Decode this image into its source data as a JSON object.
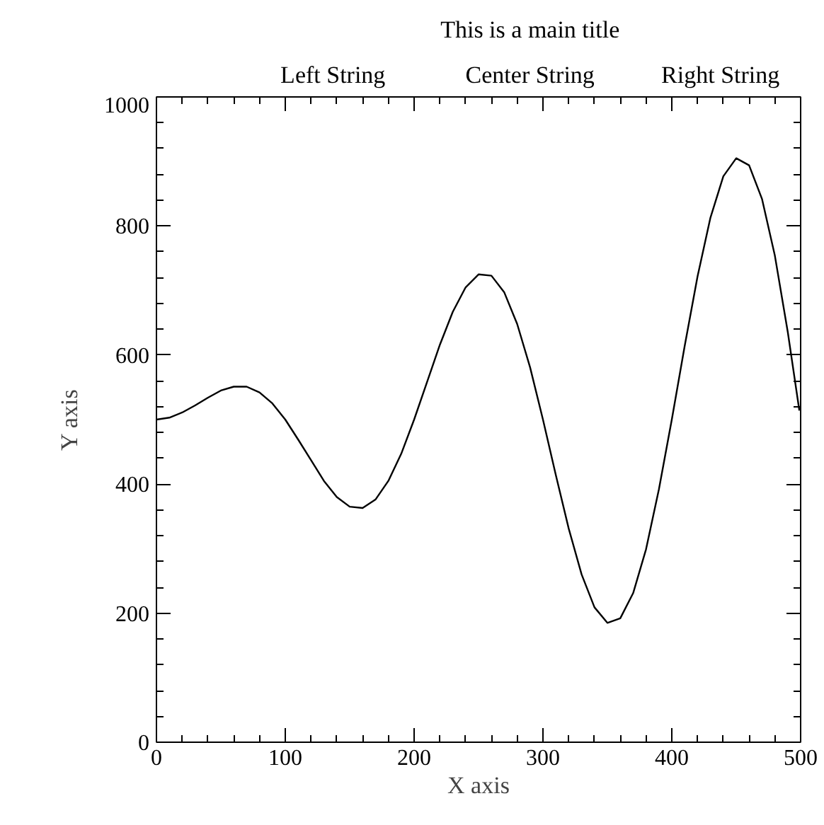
{
  "chart_data": {
    "type": "line",
    "title": "This is a main title",
    "xlabel": "X axis",
    "ylabel": "Y axis",
    "annotations": [
      "Left String",
      "Center String",
      "Right String"
    ],
    "x": [
      0,
      10,
      20,
      30,
      40,
      50,
      60,
      70,
      80,
      90,
      100,
      110,
      120,
      130,
      140,
      150,
      160,
      170,
      180,
      190,
      200,
      210,
      220,
      230,
      240,
      250,
      260,
      270,
      280,
      290,
      300,
      310,
      320,
      330,
      340,
      350,
      360,
      370,
      380,
      390,
      400,
      410,
      420,
      430,
      440,
      450,
      460,
      470,
      480,
      490,
      499
    ],
    "series": [
      {
        "color": "#000000",
        "values": [
          500,
          503,
          511,
          522,
          534,
          545,
          551,
          551,
          542,
          525,
          500,
          469,
          437,
          405,
          380,
          365,
          363,
          376,
          405,
          447,
          500,
          558,
          616,
          667,
          705,
          725,
          723,
          697,
          648,
          581,
          500,
          414,
          331,
          260,
          209,
          185,
          192,
          231,
          299,
          392,
          500,
          614,
          722,
          813,
          877,
          905,
          894,
          842,
          754,
          636,
          514
        ]
      }
    ],
    "xlim": [
      0,
      500
    ],
    "ylim": [
      0,
      1000
    ],
    "xticks": [
      0,
      100,
      200,
      300,
      400,
      500
    ],
    "yticks": [
      0,
      200,
      400,
      600,
      800,
      1000
    ],
    "grid": false,
    "marker": "none",
    "line_style": "solid"
  }
}
